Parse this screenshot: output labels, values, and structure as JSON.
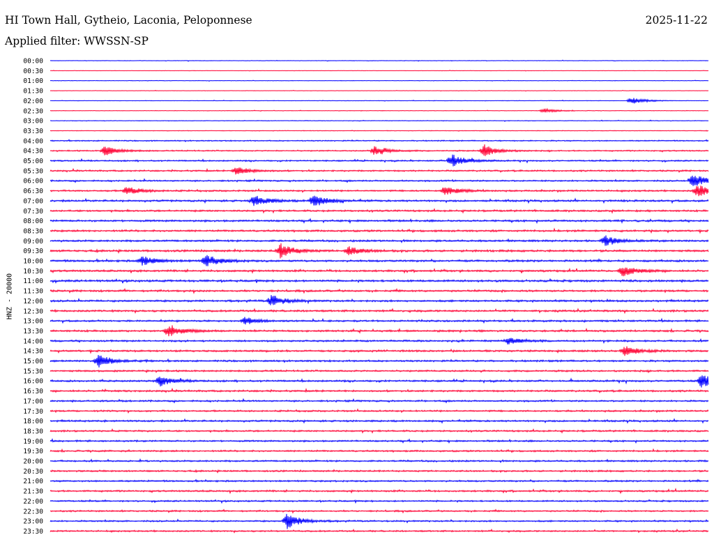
{
  "header": {
    "station": "HI Town Hall, Gytheio, Laconia, Peloponnese",
    "date": "2025-11-22",
    "filter": "Applied filter: WWSSN-SP"
  },
  "chart_data": {
    "type": "line",
    "title": "HI Town Hall, Gytheio, Laconia, Peloponnese",
    "ylabel": "HNZ - 20000",
    "row_interval_minutes": 30,
    "row_labels": [
      "00:00",
      "00:30",
      "01:00",
      "01:30",
      "02:00",
      "02:30",
      "03:00",
      "03:30",
      "04:00",
      "04:30",
      "05:00",
      "05:30",
      "06:00",
      "06:30",
      "07:00",
      "07:30",
      "08:00",
      "08:30",
      "09:00",
      "09:30",
      "10:00",
      "10:30",
      "11:00",
      "11:30",
      "12:00",
      "12:30",
      "13:00",
      "13:30",
      "14:00",
      "14:30",
      "15:00",
      "15:30",
      "16:00",
      "16:30",
      "17:00",
      "17:30",
      "18:00",
      "18:30",
      "19:00",
      "19:30",
      "20:00",
      "20:30",
      "21:00",
      "21:30",
      "22:00",
      "22:30",
      "23:00",
      "23:30"
    ],
    "series_colors": [
      "#0000ff",
      "#ff0033"
    ],
    "noise_level": [
      0.4,
      0.3,
      0.4,
      0.3,
      0.4,
      0.4,
      0.5,
      0.5,
      0.9,
      1.0,
      1.1,
      1.2,
      1.2,
      1.3,
      1.5,
      1.4,
      1.5,
      1.5,
      1.5,
      1.6,
      1.6,
      1.5,
      1.6,
      1.5,
      1.5,
      1.5,
      1.4,
      1.5,
      1.4,
      1.5,
      1.4,
      1.4,
      1.4,
      1.4,
      1.3,
      1.3,
      1.4,
      1.3,
      1.3,
      1.3,
      1.3,
      1.3,
      1.3,
      1.3,
      1.2,
      1.2,
      1.2,
      1.2
    ],
    "events": [
      {
        "row": 4,
        "minute": 26.5,
        "amplitude": 5
      },
      {
        "row": 5,
        "minute": 22.5,
        "amplitude": 3
      },
      {
        "row": 9,
        "minute": 2.5,
        "amplitude": 7
      },
      {
        "row": 9,
        "minute": 14.8,
        "amplitude": 7
      },
      {
        "row": 9,
        "minute": 19.8,
        "amplitude": 9
      },
      {
        "row": 10,
        "minute": 18.3,
        "amplitude": 10
      },
      {
        "row": 11,
        "minute": 8.5,
        "amplitude": 6
      },
      {
        "row": 12,
        "minute": 29.3,
        "amplitude": 10
      },
      {
        "row": 13,
        "minute": 3.5,
        "amplitude": 6
      },
      {
        "row": 13,
        "minute": 18.0,
        "amplitude": 7
      },
      {
        "row": 13,
        "minute": 29.5,
        "amplitude": 9
      },
      {
        "row": 14,
        "minute": 9.3,
        "amplitude": 8
      },
      {
        "row": 14,
        "minute": 12.0,
        "amplitude": 9
      },
      {
        "row": 19,
        "minute": 10.5,
        "amplitude": 10
      },
      {
        "row": 19,
        "minute": 13.6,
        "amplitude": 6
      },
      {
        "row": 18,
        "minute": 25.3,
        "amplitude": 7
      },
      {
        "row": 20,
        "minute": 4.2,
        "amplitude": 7
      },
      {
        "row": 20,
        "minute": 7.1,
        "amplitude": 9
      },
      {
        "row": 21,
        "minute": 26.1,
        "amplitude": 8
      },
      {
        "row": 24,
        "minute": 10.1,
        "amplitude": 8
      },
      {
        "row": 26,
        "minute": 8.9,
        "amplitude": 5
      },
      {
        "row": 27,
        "minute": 5.4,
        "amplitude": 9
      },
      {
        "row": 28,
        "minute": 20.9,
        "amplitude": 5
      },
      {
        "row": 29,
        "minute": 26.2,
        "amplitude": 7
      },
      {
        "row": 30,
        "minute": 2.2,
        "amplitude": 9
      },
      {
        "row": 32,
        "minute": 5.0,
        "amplitude": 7
      },
      {
        "row": 32,
        "minute": 29.7,
        "amplitude": 10
      },
      {
        "row": 46,
        "minute": 10.8,
        "amplitude": 11
      }
    ]
  }
}
